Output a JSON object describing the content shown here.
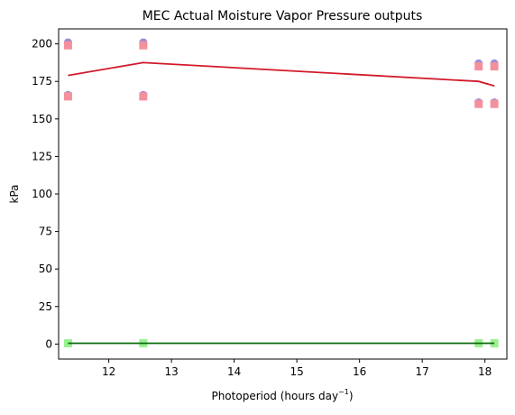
{
  "chart_data": {
    "type": "scatter",
    "title": "MEC Actual Moisture Vapor Pressure outputs",
    "xlabel": "Photoperiod (hours day",
    "xlabel_sup": "−1",
    "xlabel_end": ")",
    "ylabel": "kPa",
    "xlim": [
      11.2,
      18.35
    ],
    "ylim": [
      -10,
      210
    ],
    "x_ticks": [
      12,
      13,
      14,
      15,
      16,
      17,
      18
    ],
    "y_ticks": [
      0,
      25,
      50,
      75,
      100,
      125,
      150,
      175,
      200
    ],
    "grid": false,
    "series": [
      {
        "marker": "circle",
        "color": "#9b8fd8",
        "points": [
          [
            11.35,
            201
          ],
          [
            11.35,
            166
          ],
          [
            12.55,
            201
          ],
          [
            12.55,
            166
          ],
          [
            17.9,
            187
          ],
          [
            17.9,
            161
          ],
          [
            18.15,
            187
          ],
          [
            18.15,
            161
          ]
        ]
      },
      {
        "marker": "square",
        "color": "#f4909c",
        "points": [
          [
            11.35,
            199
          ],
          [
            11.35,
            165
          ],
          [
            12.55,
            199
          ],
          [
            12.55,
            165
          ],
          [
            17.9,
            185
          ],
          [
            17.9,
            160
          ],
          [
            18.15,
            185
          ],
          [
            18.15,
            160
          ]
        ]
      },
      {
        "marker": "square",
        "color": "#99f08f",
        "points": [
          [
            11.35,
            0.5
          ],
          [
            12.55,
            0.5
          ],
          [
            17.9,
            0.5
          ],
          [
            18.15,
            0.5
          ]
        ]
      },
      {
        "marker": "line",
        "color": "#d21a2a",
        "points": [
          [
            11.35,
            179
          ],
          [
            12.55,
            187.5
          ],
          [
            17.9,
            175
          ],
          [
            18.15,
            172
          ]
        ]
      },
      {
        "marker": "line",
        "color": "#0b6b0b",
        "points": [
          [
            11.35,
            0.5
          ],
          [
            12.55,
            0.5
          ],
          [
            17.9,
            0.5
          ],
          [
            18.15,
            0.5
          ]
        ]
      }
    ]
  }
}
